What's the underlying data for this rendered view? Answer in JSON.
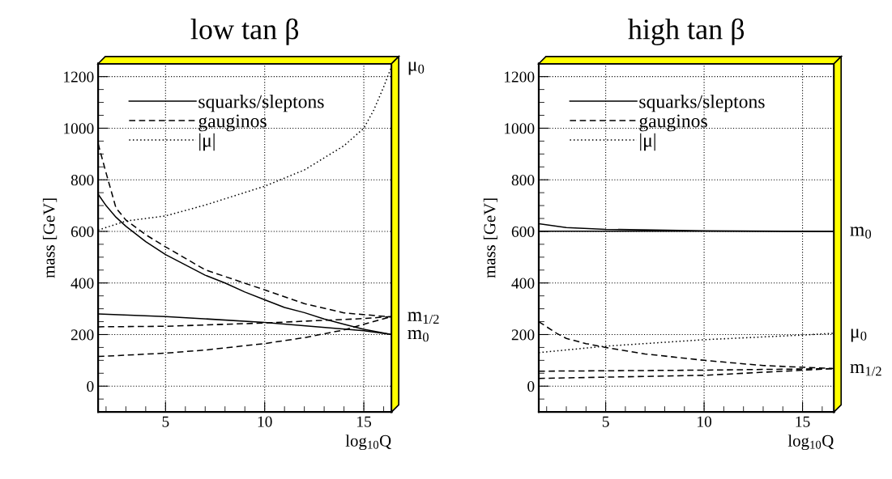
{
  "chart_data": [
    {
      "type": "line",
      "title": "low tan β",
      "xlabel": "log$_{10}$Q",
      "ylabel": "mass [GeV]",
      "xlim": [
        1.6,
        16.4
      ],
      "ylim": [
        -100,
        1250
      ],
      "xticks": [
        5,
        10,
        15
      ],
      "yticks": [
        0,
        200,
        400,
        600,
        800,
        1000,
        1200
      ],
      "grid": true,
      "legend": "top left",
      "series": [
        {
          "name": "squarks/sleptons",
          "color": "#000000",
          "line_style": "solid",
          "x": [
            1.6,
            2,
            2.5,
            3,
            4,
            5,
            6,
            7,
            8,
            9,
            10,
            11,
            12,
            13,
            14,
            15,
            16.4
          ],
          "values": [
            744,
            700,
            655,
            620,
            560,
            510,
            470,
            430,
            400,
            365,
            335,
            305,
            285,
            260,
            240,
            220,
            200
          ]
        },
        {
          "color": "#000000",
          "line_style": "solid",
          "x": [
            1.6,
            5,
            10,
            15,
            16.4
          ],
          "values": [
            280,
            270,
            247,
            215,
            200
          ]
        },
        {
          "name": "gauginos",
          "color": "#000000",
          "line_style": "dashed",
          "x": [
            1.6,
            2,
            2.5,
            3,
            4,
            5,
            7,
            10,
            12,
            14,
            16.4
          ],
          "values": [
            940,
            827,
            691,
            644,
            587,
            540,
            451,
            373,
            320,
            284,
            268
          ]
        },
        {
          "color": "#000000",
          "line_style": "dashed",
          "x": [
            1.6,
            5,
            10,
            15,
            16.4
          ],
          "values": [
            230,
            232,
            245,
            262,
            270
          ]
        },
        {
          "color": "#000000",
          "line_style": "dashed",
          "x": [
            1.6,
            3,
            5,
            7,
            10,
            12,
            14,
            15,
            16.4
          ],
          "values": [
            115,
            120,
            128,
            140,
            165,
            188,
            218,
            240,
            270
          ]
        },
        {
          "name": "|μ|",
          "color": "#000000",
          "line_style": "dotted",
          "x": [
            1.6,
            3,
            5,
            7,
            10,
            12,
            13,
            14,
            15,
            15.5,
            16,
            16.4
          ],
          "values": [
            605,
            640,
            660,
            702,
            775,
            838,
            885,
            932,
            1000,
            1070,
            1160,
            1240
          ]
        }
      ],
      "annotations": [
        "μ$_{0}$",
        "m$_{1/2}$",
        "m$_{0}$"
      ]
    },
    {
      "type": "line",
      "title": "high tan β",
      "xlabel": "log$_{10}$Q",
      "ylabel": "mass [GeV]",
      "xlim": [
        1.6,
        16.6
      ],
      "ylim": [
        -100,
        1250
      ],
      "xticks": [
        5,
        10,
        15
      ],
      "yticks": [
        0,
        200,
        400,
        600,
        800,
        1000,
        1200
      ],
      "grid": true,
      "legend": "top left",
      "series": [
        {
          "name": "squarks/sleptons",
          "color": "#000000",
          "line_style": "solid",
          "x": [
            1.6,
            3,
            5,
            10,
            16.6
          ],
          "values": [
            630,
            615,
            608,
            602,
            600
          ]
        },
        {
          "color": "#000000",
          "line_style": "solid",
          "x": [
            1.6,
            10,
            16.6
          ],
          "values": [
            601,
            601,
            600
          ]
        },
        {
          "name": "gauginos",
          "color": "#000000",
          "line_style": "dashed",
          "x": [
            1.6,
            2.5,
            3,
            4,
            5,
            7,
            10,
            13,
            16.6
          ],
          "values": [
            250,
            205,
            185,
            165,
            150,
            125,
            100,
            80,
            68
          ]
        },
        {
          "color": "#000000",
          "line_style": "dashed",
          "x": [
            1.6,
            10,
            16.6
          ],
          "values": [
            58,
            62,
            68
          ]
        },
        {
          "color": "#000000",
          "line_style": "dashed",
          "x": [
            1.6,
            10,
            16.6
          ],
          "values": [
            30,
            42,
            68
          ]
        },
        {
          "name": "|μ|",
          "color": "#000000",
          "line_style": "dotted",
          "x": [
            1.6,
            5,
            10,
            15,
            16.6
          ],
          "values": [
            130,
            155,
            180,
            198,
            205
          ]
        }
      ],
      "annotations": [
        "m$_{0}$",
        "μ$_{0}$",
        "m$_{1/2}$"
      ]
    }
  ]
}
